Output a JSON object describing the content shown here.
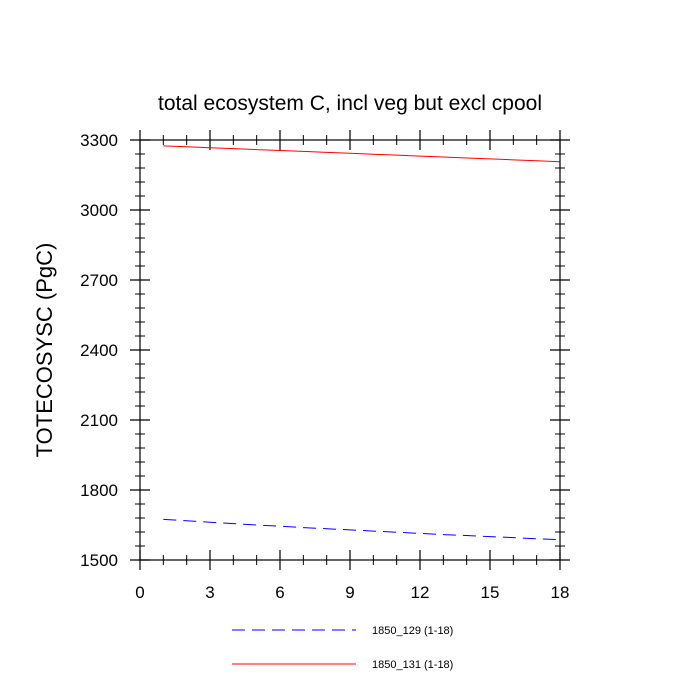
{
  "chart_data": {
    "type": "line",
    "title": "total ecosystem C, incl veg but excl cpool",
    "xlabel": "",
    "ylabel": "TOTECOSYSC  (PgC)",
    "xlim": [
      0,
      18
    ],
    "ylim": [
      1500,
      3300
    ],
    "x_ticks": [
      0,
      3,
      6,
      9,
      12,
      15,
      18
    ],
    "y_ticks": [
      1500,
      1800,
      2100,
      2400,
      2700,
      3000,
      3300
    ],
    "x_tick_labels": [
      "0",
      "3",
      "6",
      "9",
      "12",
      "15",
      "18"
    ],
    "y_tick_labels": [
      "1500",
      "1800",
      "2100",
      "2400",
      "2700",
      "3000",
      "3300"
    ],
    "grid": false,
    "legend_position": "bottom",
    "series": [
      {
        "name": "1850_129 (1-18)",
        "color": "#0000ff",
        "style": "dashed",
        "x": [
          1,
          2,
          3,
          4,
          5,
          6,
          7,
          8,
          9,
          10,
          11,
          12,
          13,
          14,
          15,
          16,
          17,
          18
        ],
        "y": [
          1674,
          1668,
          1662,
          1656,
          1650,
          1645,
          1639,
          1634,
          1629,
          1624,
          1619,
          1614,
          1609,
          1605,
          1600,
          1596,
          1591,
          1587
        ]
      },
      {
        "name": "1850_131 (1-18)",
        "color": "#ff0000",
        "style": "solid",
        "x": [
          1,
          2,
          3,
          4,
          5,
          6,
          7,
          8,
          9,
          10,
          11,
          12,
          13,
          14,
          15,
          16,
          17,
          18
        ],
        "y": [
          3275,
          3271,
          3267,
          3263,
          3259,
          3255,
          3251,
          3247,
          3243,
          3239,
          3235,
          3231,
          3227,
          3223,
          3219,
          3215,
          3211,
          3207
        ]
      }
    ]
  }
}
